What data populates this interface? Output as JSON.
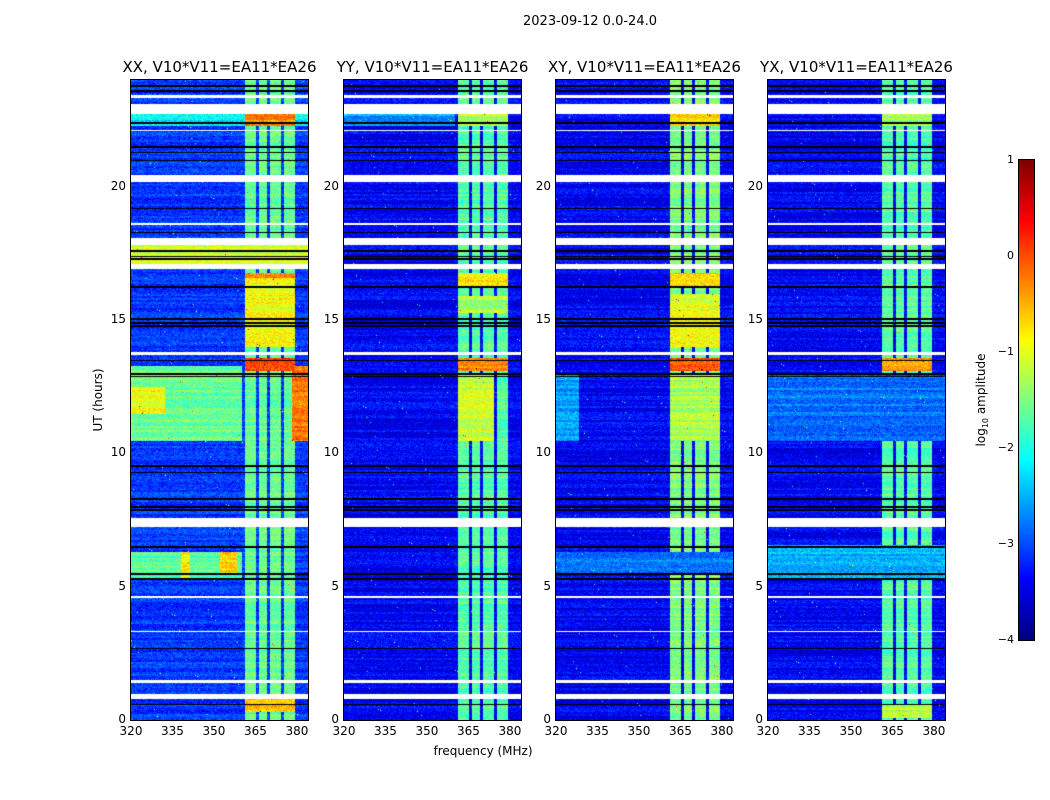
{
  "chart_data": {
    "type": "heatmap",
    "title": "2023-09-12 0.0-24.0",
    "xlabel": "frequency (MHz)",
    "ylabel": "UT (hours)",
    "xlim": [
      320,
      384
    ],
    "ylim": [
      0,
      24
    ],
    "xticks": [
      320,
      335,
      350,
      365,
      380
    ],
    "yticks": [
      0,
      5,
      10,
      15,
      20
    ],
    "colormap": "jet",
    "colorbar": {
      "label": "log10 amplitude",
      "label_main": "log",
      "label_sub": "10",
      "label_tail": " amplitude",
      "range": [
        -4,
        1
      ],
      "ticks": [
        1,
        0,
        -1,
        -2,
        -3,
        -4
      ],
      "tick_labels": [
        "1",
        "0",
        "−1",
        "−2",
        "−3",
        "−4"
      ]
    },
    "flagged_hours": [
      [
        0.82,
        0.98
      ],
      [
        7.25,
        7.6
      ],
      [
        13.7,
        13.8
      ],
      [
        17.85,
        18.1
      ],
      [
        16.95,
        17.1
      ],
      [
        20.2,
        20.45
      ],
      [
        22.75,
        23.1
      ],
      [
        23.35,
        23.45
      ],
      [
        1.4,
        1.5
      ],
      [
        3.3,
        3.35
      ],
      [
        4.6,
        4.65
      ],
      [
        18.6,
        18.65
      ],
      [
        22.1,
        22.15
      ]
    ],
    "dropout_hours": [
      9.55,
      9.3,
      8.3,
      8.0,
      7.9,
      12.9,
      13.0,
      13.5,
      14.8,
      14.9,
      15.05,
      16.25,
      17.3,
      17.4,
      17.6,
      18.3,
      19.2,
      21.0,
      21.3,
      21.5,
      22.4,
      23.6,
      23.8,
      5.3,
      5.5,
      6.5,
      2.7,
      0.6
    ],
    "bright_channels_mhz": [
      [
        361,
        365
      ],
      [
        366,
        369
      ],
      [
        370,
        374
      ],
      [
        375,
        379
      ]
    ],
    "panels": [
      {
        "title": "XX, V10*V11=EA11*EA26",
        "base": -3.1,
        "band": -1.6,
        "regions": [
          [
            22.3,
            22.75,
            320,
            384,
            -2.2
          ],
          [
            22.3,
            22.75,
            361,
            379,
            -0.3
          ],
          [
            17.1,
            17.9,
            320,
            384,
            -1.1
          ],
          [
            10.5,
            13.3,
            320,
            360,
            -1.6
          ],
          [
            10.5,
            13.3,
            378,
            384,
            -0.2
          ],
          [
            11.5,
            12.5,
            320,
            332,
            -0.9
          ],
          [
            5.3,
            6.3,
            320,
            360,
            -1.7
          ],
          [
            5.3,
            6.3,
            338,
            341,
            -0.8
          ],
          [
            5.5,
            6.3,
            352,
            358,
            -0.7
          ],
          [
            13.1,
            13.6,
            361,
            379,
            0.1
          ],
          [
            14,
            16.6,
            361,
            379,
            -0.9
          ],
          [
            0.3,
            0.8,
            361,
            379,
            -0.5
          ],
          [
            16.6,
            16.8,
            361,
            379,
            -0.3
          ]
        ]
      },
      {
        "title": "YY, V10*V11=EA11*EA26",
        "base": -3.4,
        "band": -1.7,
        "regions": [
          [
            22.3,
            22.75,
            320,
            360,
            -2.6
          ],
          [
            22.3,
            22.75,
            361,
            379,
            -1.2
          ],
          [
            13.1,
            13.6,
            361,
            379,
            -0.3
          ],
          [
            10.5,
            13,
            361,
            374,
            -1.1
          ],
          [
            16.3,
            16.8,
            361,
            379,
            -0.8
          ],
          [
            15.3,
            15.9,
            361,
            379,
            -1.3
          ]
        ]
      },
      {
        "title": "XY, V10*V11=EA11*EA26",
        "base": -3.4,
        "band": -1.5,
        "regions": [
          [
            22.3,
            22.75,
            361,
            379,
            -0.7
          ],
          [
            13.1,
            13.6,
            361,
            379,
            0.0
          ],
          [
            16.3,
            16.8,
            361,
            379,
            -0.6
          ],
          [
            14,
            16,
            361,
            379,
            -1.0
          ],
          [
            10.5,
            13,
            361,
            379,
            -1.3
          ],
          [
            10.5,
            13,
            320,
            328,
            -2.6
          ],
          [
            5.5,
            6.3,
            320,
            384,
            -2.8
          ]
        ]
      },
      {
        "title": "YX, V10*V11=EA11*EA26",
        "base": -3.4,
        "band": -1.7,
        "regions": [
          [
            13.1,
            13.6,
            361,
            379,
            -0.4
          ],
          [
            10.5,
            13,
            320,
            384,
            -2.8
          ],
          [
            5.3,
            6.6,
            320,
            384,
            -2.5
          ],
          [
            22.3,
            22.75,
            361,
            379,
            -1.3
          ],
          [
            0.1,
            0.6,
            361,
            379,
            -1.2
          ]
        ]
      }
    ]
  }
}
